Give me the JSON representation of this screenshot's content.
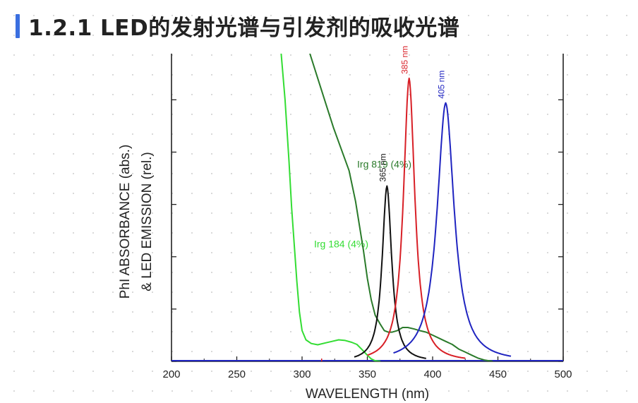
{
  "page": {
    "title": "1.2.1 LED的发射光谱与引发剂的吸收光谱",
    "accent_color": "#3a6fe0"
  },
  "chart_data": {
    "type": "line",
    "xlabel": "WAVELENGTH (nm)",
    "ylabel_line1": "PhI ABSORBANCE (abs.)",
    "ylabel_line2": "& LED EMISSION (rel.)",
    "xlim": [
      200,
      500
    ],
    "ylim": [
      0,
      100
    ],
    "x_ticks": [
      200,
      250,
      300,
      350,
      400,
      450,
      500
    ],
    "y_ticks": [
      0,
      17,
      34,
      51,
      68,
      85
    ],
    "grid": false,
    "series": [
      {
        "name": "Irg 184 (4%)",
        "color": "#33dd33",
        "label_at": [
          330,
          37
        ],
        "points": [
          [
            284,
            100
          ],
          [
            287,
            85
          ],
          [
            290,
            65
          ],
          [
            292,
            50
          ],
          [
            294,
            38
          ],
          [
            296,
            26
          ],
          [
            298,
            16
          ],
          [
            300,
            10
          ],
          [
            303,
            7
          ],
          [
            307,
            5.8
          ],
          [
            312,
            5.4
          ],
          [
            318,
            6
          ],
          [
            323,
            6.5
          ],
          [
            328,
            7
          ],
          [
            333,
            6.8
          ],
          [
            338,
            6.2
          ],
          [
            342,
            5.5
          ],
          [
            346,
            3.8
          ],
          [
            350,
            2
          ],
          [
            353,
            0.8
          ],
          [
            356,
            0.2
          ],
          [
            360,
            0
          ]
        ]
      },
      {
        "name": "Irg 819 (4%)",
        "color": "#2a7a2a",
        "label_at": [
          363,
          63
        ],
        "points": [
          [
            306,
            100
          ],
          [
            312,
            92
          ],
          [
            318,
            84
          ],
          [
            324,
            76
          ],
          [
            330,
            69
          ],
          [
            336,
            62
          ],
          [
            341,
            52
          ],
          [
            344,
            44
          ],
          [
            347,
            36
          ],
          [
            350,
            27
          ],
          [
            353,
            20
          ],
          [
            356,
            15
          ],
          [
            360,
            12
          ],
          [
            363,
            10
          ],
          [
            366,
            9.5
          ],
          [
            369,
            9.5
          ],
          [
            373,
            10
          ],
          [
            377,
            11
          ],
          [
            381,
            11
          ],
          [
            386,
            10.5
          ],
          [
            390,
            10
          ],
          [
            395,
            9.5
          ],
          [
            400,
            8.5
          ],
          [
            405,
            7.5
          ],
          [
            410,
            6.5
          ],
          [
            415,
            5.5
          ],
          [
            420,
            4
          ],
          [
            425,
            3
          ],
          [
            430,
            2
          ],
          [
            435,
            1
          ],
          [
            440,
            0.4
          ],
          [
            446,
            0
          ]
        ]
      },
      {
        "name": "365 nm LED",
        "color": "#111111",
        "peak_label": "365 nm",
        "peak": 365,
        "height": 57,
        "width": 5,
        "range": [
          340,
          395
        ]
      },
      {
        "name": "385 nm LED",
        "color": "#d81f26",
        "peak_label": "385 nm",
        "peak": 382,
        "height": 92,
        "width": 6,
        "range": [
          350,
          425
        ]
      },
      {
        "name": "405 nm LED",
        "color": "#1f24c0",
        "peak_label": "405 nm",
        "peak": 410,
        "height": 84,
        "width": 9,
        "range": [
          370,
          460
        ]
      }
    ]
  }
}
